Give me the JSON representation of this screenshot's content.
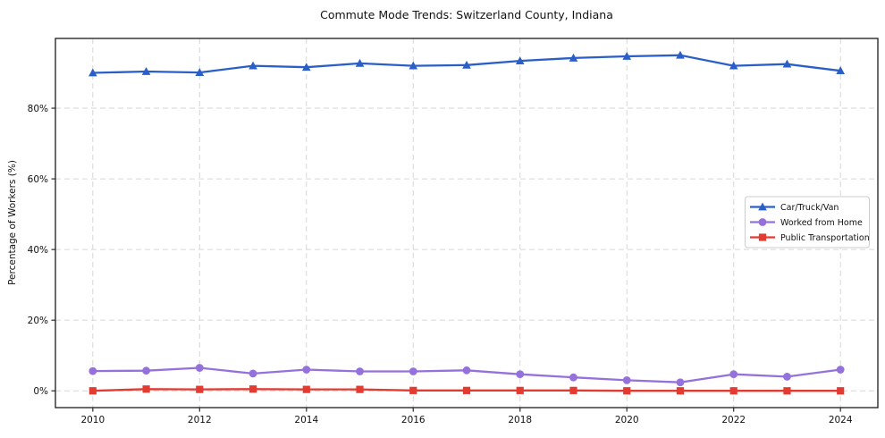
{
  "chart_data": {
    "type": "line",
    "title": "Commute Mode Trends: Switzerland County, Indiana",
    "xlabel": "",
    "ylabel": "Percentage of Workers (%)",
    "x": [
      2010,
      2011,
      2012,
      2013,
      2014,
      2015,
      2016,
      2017,
      2018,
      2019,
      2020,
      2021,
      2022,
      2023,
      2024
    ],
    "x_ticks": [
      2010,
      2012,
      2014,
      2016,
      2018,
      2020,
      2022,
      2024
    ],
    "y_ticks": [
      0,
      20,
      40,
      60,
      80
    ],
    "y_tick_suffix": "%",
    "xlim": [
      2009.3,
      2024.7
    ],
    "ylim": [
      -4.75,
      99.75
    ],
    "grid": true,
    "legend_position": "center-right",
    "series": [
      {
        "name": "Car/Truck/Van",
        "marker": "triangle",
        "color": "#2b5fc7",
        "values": [
          90.0,
          90.4,
          90.1,
          92.0,
          91.6,
          92.7,
          92.0,
          92.2,
          93.4,
          94.2,
          94.7,
          95.0,
          92.0,
          92.5,
          90.6
        ]
      },
      {
        "name": "Worked from Home",
        "marker": "circle",
        "color": "#9571db",
        "values": [
          5.6,
          5.7,
          6.5,
          4.9,
          6.0,
          5.5,
          5.5,
          5.8,
          4.7,
          3.8,
          3.0,
          2.4,
          4.7,
          4.0,
          6.0
        ]
      },
      {
        "name": "Public Transportation",
        "marker": "square",
        "color": "#e23b32",
        "values": [
          0.0,
          0.5,
          0.4,
          0.5,
          0.4,
          0.4,
          0.1,
          0.1,
          0.1,
          0.1,
          0.0,
          0.0,
          0.0,
          0.0,
          0.0
        ]
      }
    ],
    "style": {
      "grid_color": "#d6d6d6",
      "spine_color": "#2a2a2a",
      "tick_label_color": "#111111",
      "legend_border_color": "#cccccc",
      "legend_bg_color": "#ffffff",
      "background_color": "#ffffff"
    }
  }
}
